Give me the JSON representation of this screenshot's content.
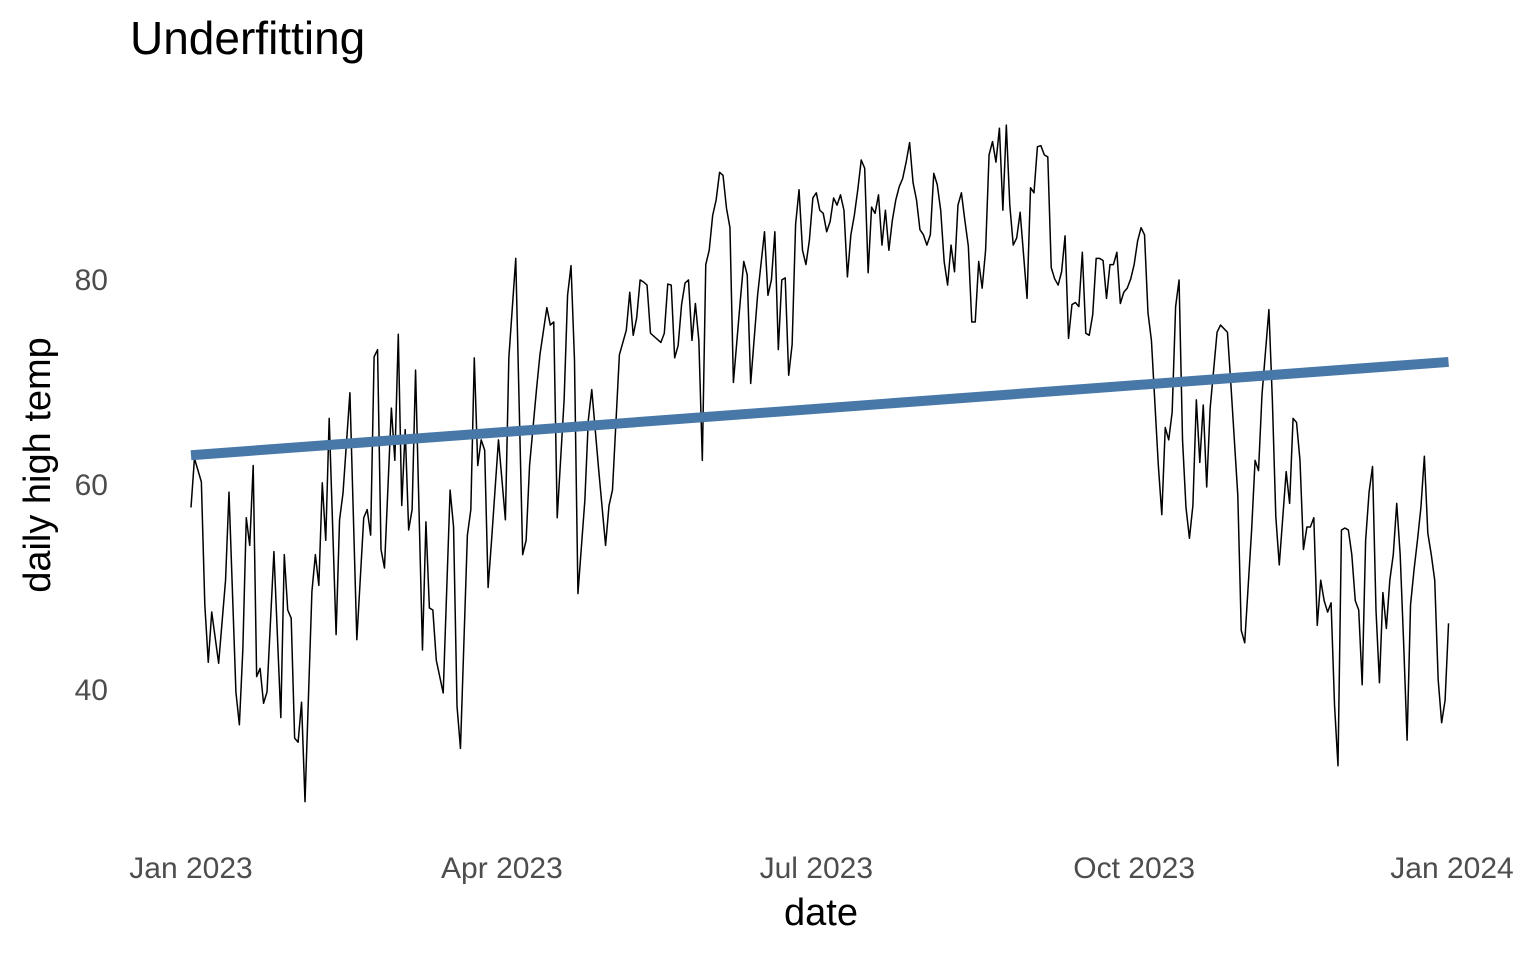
{
  "chart_data": {
    "type": "line",
    "title": "Underfitting",
    "x_label": "date",
    "y_label": "daily high temp",
    "xlim": [
      0,
      365
    ],
    "xticks": [
      {
        "value": 0,
        "label": "Jan 2023"
      },
      {
        "value": 90,
        "label": "Apr 2023"
      },
      {
        "value": 181,
        "label": "Jul 2023"
      },
      {
        "value": 273,
        "label": "Oct 2023"
      },
      {
        "value": 365,
        "label": "Jan 2024"
      }
    ],
    "ylim": [
      28,
      96
    ],
    "yticks": [
      40,
      60,
      80
    ],
    "grid": false,
    "series": [
      {
        "color": "#000000",
        "x": [
          0,
          1,
          3,
          4,
          5,
          6,
          8,
          10,
          11,
          13,
          14,
          15,
          16,
          17,
          18,
          19,
          20,
          21,
          22,
          24,
          26,
          27,
          28,
          29,
          30,
          31,
          32,
          33,
          35,
          36,
          37,
          38,
          39,
          40,
          42,
          43,
          44,
          46,
          48,
          50,
          51,
          52,
          53,
          54,
          55,
          56,
          58,
          59,
          60,
          61,
          62,
          63,
          64,
          65,
          67,
          68,
          69,
          70,
          71,
          73,
          75,
          76,
          77,
          78,
          80,
          81,
          82,
          83,
          84,
          85,
          86,
          87,
          88,
          89,
          91,
          92,
          94,
          96,
          97,
          98,
          100,
          101,
          103,
          104,
          105,
          106,
          108,
          109,
          110,
          111,
          112,
          114,
          115,
          116,
          118,
          120,
          121,
          122,
          124,
          126,
          127,
          128,
          129,
          130,
          131,
          132,
          133,
          136,
          137,
          138,
          139,
          140,
          141,
          142,
          143,
          144,
          145,
          146,
          147,
          148,
          149,
          150,
          151,
          152,
          153,
          154,
          155,
          156,
          157,
          159,
          160,
          161,
          162,
          164,
          166,
          167,
          168,
          169,
          170,
          171,
          172,
          173,
          174,
          175,
          176,
          177,
          178,
          179,
          180,
          181,
          182,
          183,
          184,
          185,
          186,
          187,
          188,
          189,
          190,
          191,
          192,
          193,
          194,
          195,
          196,
          197,
          198,
          199,
          200,
          201,
          202,
          203,
          204,
          205,
          206,
          207,
          208,
          209,
          210,
          211,
          212,
          213,
          214,
          215,
          216,
          217,
          218,
          219,
          220,
          221,
          222,
          223,
          224,
          225,
          226,
          227,
          228,
          229,
          230,
          231,
          232,
          233,
          234,
          235,
          236,
          237,
          238,
          239,
          240,
          241,
          242,
          243,
          244,
          245,
          246,
          247,
          248,
          249,
          250,
          251,
          252,
          253,
          254,
          255,
          256,
          257,
          258,
          259,
          260,
          261,
          262,
          263,
          264,
          265,
          266,
          267,
          268,
          269,
          270,
          271,
          272,
          273,
          274,
          275,
          276,
          277,
          278,
          280,
          281,
          282,
          283,
          284,
          285,
          286,
          287,
          288,
          289,
          290,
          291,
          292,
          293,
          294,
          295,
          296,
          297,
          298,
          300,
          301,
          303,
          304,
          305,
          307,
          308,
          309,
          310,
          312,
          313,
          314,
          315,
          317,
          318,
          319,
          320,
          321,
          322,
          323,
          324,
          325,
          326,
          327,
          328,
          329,
          330,
          331,
          332,
          333,
          334,
          335,
          336,
          337,
          338,
          339,
          340,
          341,
          342,
          343,
          344,
          345,
          346,
          347,
          348,
          349,
          350,
          351,
          352,
          353,
          354,
          355,
          356,
          357,
          358,
          359,
          360,
          361,
          362,
          363,
          364
        ],
        "values": [
          58.0,
          62.8,
          60.5,
          48.5,
          42.9,
          47.8,
          42.8,
          50.9,
          59.5,
          40.0,
          36.8,
          44.1,
          57.0,
          54.3,
          62.1,
          41.5,
          42.3,
          38.9,
          40.0,
          53.7,
          37.5,
          53.4,
          48.0,
          47.2,
          35.5,
          35.1,
          39.0,
          29.3,
          49.8,
          53.4,
          50.4,
          60.4,
          54.8,
          66.7,
          45.6,
          56.8,
          59.4,
          69.2,
          45.1,
          57.0,
          57.8,
          55.3,
          72.7,
          73.4,
          53.9,
          52.1,
          67.7,
          62.6,
          74.9,
          58.2,
          65.6,
          55.8,
          57.8,
          71.4,
          44.1,
          56.6,
          48.2,
          48.0,
          43.1,
          39.9,
          59.7,
          56.1,
          38.6,
          34.5,
          55.3,
          57.8,
          72.6,
          62.1,
          64.6,
          63.6,
          50.2,
          54.8,
          59.7,
          64.6,
          56.8,
          72.6,
          82.3,
          53.4,
          54.8,
          62.1,
          69.5,
          72.9,
          77.5,
          75.8,
          76.1,
          57.0,
          68.5,
          78.7,
          81.6,
          72.4,
          49.6,
          58.7,
          66.5,
          69.5,
          61.7,
          54.3,
          58.2,
          59.7,
          72.9,
          75.3,
          79.0,
          74.8,
          76.5,
          80.2,
          80.0,
          79.7,
          75.0,
          74.1,
          75.0,
          79.8,
          79.7,
          72.6,
          73.8,
          77.8,
          79.9,
          80.2,
          74.3,
          77.9,
          74.3,
          62.6,
          81.7,
          83.1,
          86.5,
          88.0,
          90.7,
          90.4,
          87.2,
          85.3,
          70.2,
          78.2,
          82.0,
          80.7,
          70.1,
          78.7,
          84.9,
          78.7,
          80.2,
          84.9,
          73.4,
          80.2,
          80.4,
          70.9,
          73.9,
          85.6,
          89.0,
          83.1,
          81.7,
          84.1,
          88.2,
          88.7,
          87.0,
          86.7,
          84.9,
          85.9,
          88.2,
          87.5,
          88.5,
          87.0,
          80.5,
          84.6,
          86.5,
          89.0,
          91.9,
          91.1,
          80.9,
          87.3,
          86.7,
          88.5,
          83.6,
          87.0,
          83.1,
          86.0,
          88.0,
          89.3,
          90.1,
          91.7,
          93.6,
          89.7,
          88.0,
          85.1,
          84.6,
          83.6,
          84.6,
          90.6,
          89.5,
          87.0,
          82.0,
          79.7,
          83.6,
          81.0,
          87.5,
          88.7,
          86.0,
          83.5,
          76.1,
          76.1,
          82.0,
          79.4,
          83.1,
          92.4,
          93.7,
          91.7,
          95.0,
          87.0,
          95.3,
          87.5,
          83.6,
          84.3,
          86.8,
          82.6,
          78.4,
          89.2,
          88.7,
          93.2,
          93.3,
          92.4,
          92.2,
          81.4,
          80.3,
          79.7,
          81.0,
          84.5,
          74.5,
          77.8,
          78.0,
          77.6,
          82.9,
          75.0,
          74.8,
          76.8,
          82.3,
          82.3,
          82.1,
          78.4,
          81.7,
          81.7,
          82.9,
          77.9,
          79.0,
          79.4,
          80.3,
          81.7,
          84.0,
          85.3,
          84.6,
          77.0,
          74.3,
          62.1,
          57.3,
          65.8,
          64.6,
          67.3,
          77.6,
          80.2,
          64.6,
          58.0,
          55.0,
          58.2,
          68.5,
          62.4,
          68.0,
          60.0,
          67.7,
          71.4,
          75.1,
          75.8,
          75.1,
          70.0,
          59.2,
          46.0,
          44.8,
          55.8,
          62.6,
          61.6,
          69.0,
          77.3,
          68.5,
          57.1,
          52.4,
          61.5,
          58.4,
          66.7,
          66.3,
          62.6,
          53.9,
          56.1,
          56.1,
          57.0,
          46.5,
          50.9,
          48.9,
          47.8,
          48.7,
          38.7,
          32.8,
          55.8,
          56.0,
          55.8,
          53.4,
          48.9,
          48.0,
          40.7,
          54.8,
          59.5,
          62.0,
          48.0,
          40.9,
          49.7,
          46.2,
          50.9,
          53.4,
          58.4,
          53.4,
          44.8,
          35.3,
          48.5,
          51.9,
          54.8,
          58.0,
          63.0,
          55.5,
          53.4,
          50.9,
          41.2,
          37.0,
          39.2,
          46.7
        ]
      },
      {
        "color": "#4878a8",
        "x": [
          0,
          364
        ],
        "values": [
          63.1,
          72.2
        ]
      }
    ]
  }
}
